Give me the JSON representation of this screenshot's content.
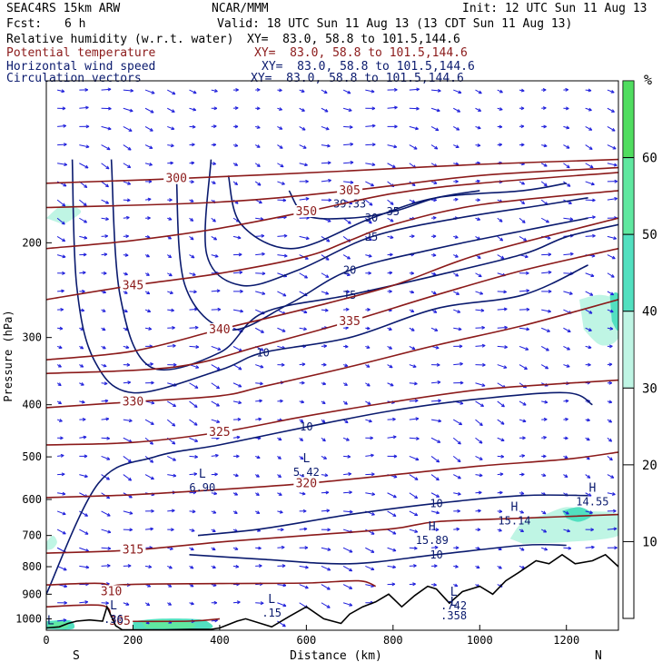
{
  "header": {
    "model": "SEAC4RS 15km ARW",
    "org": "NCAR/MMM",
    "init": "Init: 12 UTC Sun 11 Aug 13",
    "fcst_label": "Fcst:",
    "fcst_value": "6 h",
    "valid": "Valid: 18 UTC Sun 11 Aug 13 (13 CDT Sun 11 Aug 13)"
  },
  "fields": [
    {
      "name": "Relative humidity (w.r.t. water)",
      "xy": "XY=  83.0, 58.8 to 101.5,144.6"
    },
    {
      "name": "Potential temperature",
      "xy": "XY=  83.0, 58.8 to 101.5,144.6"
    },
    {
      "name": "Horizontal wind speed",
      "xy": "XY=  83.0, 58.8 to 101.5,144.6"
    },
    {
      "name": "Circulation vectors",
      "xy": "XY=  83.0, 58.8 to 101.5,144.6"
    }
  ],
  "chart_data": {
    "type": "cross-section contour",
    "xlabel": "Distance (km)",
    "ylabel": "Pressure (hPa)",
    "x_ticks": [
      0,
      200,
      400,
      600,
      800,
      1000,
      1200
    ],
    "y_ticks": [
      200,
      300,
      400,
      500,
      600,
      700,
      800,
      900,
      1000
    ],
    "xlim": [
      0,
      1320
    ],
    "ylim": [
      1050,
      100
    ],
    "y_scale": "log",
    "endpoints": {
      "left": "S",
      "right": "N"
    },
    "colorbar": {
      "unit": "%",
      "ticks": [
        10,
        20,
        30,
        40,
        50,
        60
      ],
      "colors": {
        "30-40": "#bff5e4",
        "40-50": "#52e0c0",
        "50-60": "#60e8a0",
        "60-70": "#50dd60"
      }
    },
    "colors": {
      "theta": "#8b1a1a",
      "wind": "#0a1a6e",
      "vectors": "#1e1edb",
      "terrain": "#000000"
    },
    "theta_contours": [
      {
        "value": 300,
        "label": "300",
        "pts": [
          [
            0,
            155
          ],
          [
            300,
            152
          ],
          [
            700,
            147
          ],
          [
            1000,
            143
          ],
          [
            1320,
            140
          ]
        ]
      },
      {
        "value": 305,
        "label": "305",
        "pts": [
          [
            0,
            172
          ],
          [
            400,
            168
          ],
          [
            700,
            160
          ],
          [
            1000,
            150
          ],
          [
            1320,
            145
          ]
        ]
      },
      {
        "value": 350,
        "label": "350",
        "pts": [
          [
            0,
            205
          ],
          [
            200,
            198
          ],
          [
            400,
            188
          ],
          [
            600,
            175
          ],
          [
            800,
            162
          ],
          [
            1000,
            155
          ],
          [
            1320,
            148
          ]
        ]
      },
      {
        "value": 345,
        "label": "345",
        "pts": [
          [
            0,
            255
          ],
          [
            200,
            240
          ],
          [
            400,
            228
          ],
          [
            600,
            212
          ],
          [
            700,
            198
          ],
          [
            800,
            185
          ],
          [
            1000,
            170
          ],
          [
            1320,
            160
          ]
        ]
      },
      {
        "value": 340,
        "label": "340",
        "pts": [
          [
            0,
            330
          ],
          [
            200,
            318
          ],
          [
            400,
            290
          ],
          [
            600,
            265
          ],
          [
            800,
            240
          ],
          [
            1000,
            210
          ],
          [
            1320,
            180
          ]
        ]
      },
      {
        "value": 335,
        "label": "335",
        "pts": [
          [
            0,
            350
          ],
          [
            300,
            340
          ],
          [
            500,
            310
          ],
          [
            700,
            280
          ],
          [
            900,
            250
          ],
          [
            1100,
            225
          ],
          [
            1320,
            205
          ]
        ]
      },
      {
        "value": 330,
        "label": "330",
        "pts": [
          [
            0,
            405
          ],
          [
            200,
            395
          ],
          [
            400,
            385
          ],
          [
            500,
            370
          ],
          [
            700,
            340
          ],
          [
            900,
            310
          ],
          [
            1100,
            285
          ],
          [
            1320,
            255
          ]
        ]
      },
      {
        "value": 325,
        "label": "325",
        "pts": [
          [
            0,
            475
          ],
          [
            200,
            470
          ],
          [
            400,
            450
          ],
          [
            600,
            420
          ],
          [
            800,
            395
          ],
          [
            1000,
            375
          ],
          [
            1200,
            365
          ],
          [
            1320,
            360
          ]
        ]
      },
      {
        "value": 320,
        "label": "320",
        "pts": [
          [
            0,
            595
          ],
          [
            200,
            588
          ],
          [
            400,
            575
          ],
          [
            600,
            560
          ],
          [
            800,
            540
          ],
          [
            1000,
            520
          ],
          [
            1200,
            505
          ],
          [
            1320,
            490
          ]
        ]
      },
      {
        "value": 315,
        "label": "315",
        "pts": [
          [
            0,
            755
          ],
          [
            200,
            745
          ],
          [
            400,
            720
          ],
          [
            600,
            700
          ],
          [
            800,
            680
          ],
          [
            900,
            660
          ],
          [
            1100,
            650
          ],
          [
            1320,
            640
          ]
        ]
      },
      {
        "value": 310,
        "label": "310",
        "pts": [
          [
            0,
            865
          ],
          [
            130,
            860
          ],
          [
            150,
            890
          ],
          [
            170,
            865
          ],
          [
            400,
            860
          ],
          [
            600,
            858
          ],
          [
            720,
            850
          ],
          [
            760,
            870
          ]
        ]
      },
      {
        "value": 305,
        "label": "305",
        "pts": [
          [
            0,
            950
          ],
          [
            130,
            945
          ],
          [
            150,
            1000
          ],
          [
            170,
            1010
          ],
          [
            330,
            1010
          ],
          [
            400,
            1000
          ]
        ]
      }
    ],
    "wind_contours": [
      {
        "value": 10,
        "label": "10",
        "pts": [
          [
            60,
            140
          ],
          [
            70,
            240
          ],
          [
            110,
            330
          ],
          [
            200,
            380
          ],
          [
            400,
            345
          ],
          [
            500,
            320
          ],
          [
            700,
            300
          ],
          [
            900,
            265
          ],
          [
            1100,
            250
          ],
          [
            1250,
            220
          ]
        ]
      },
      {
        "value": 15,
        "label": "15",
        "pts": [
          [
            150,
            140
          ],
          [
            170,
            250
          ],
          [
            240,
            340
          ],
          [
            400,
            320
          ],
          [
            500,
            270
          ],
          [
            700,
            250
          ],
          [
            900,
            230
          ],
          [
            1100,
            210
          ],
          [
            1200,
            195
          ],
          [
            1320,
            185
          ]
        ]
      },
      {
        "value": 20,
        "label": "20",
        "pts": [
          [
            300,
            150
          ],
          [
            320,
            240
          ],
          [
            420,
            290
          ],
          [
            560,
            260
          ],
          [
            700,
            225
          ],
          [
            900,
            205
          ],
          [
            1100,
            190
          ],
          [
            1250,
            180
          ]
        ]
      },
      {
        "value": 25,
        "label": "25",
        "pts": [
          [
            380,
            140
          ],
          [
            370,
            210
          ],
          [
            450,
            240
          ],
          [
            580,
            225
          ],
          [
            750,
            195
          ],
          [
            950,
            180
          ],
          [
            1150,
            170
          ],
          [
            1250,
            165
          ]
        ]
      },
      {
        "value": 30,
        "label": "30",
        "pts": [
          [
            420,
            150
          ],
          [
            450,
            185
          ],
          [
            570,
            205
          ],
          [
            750,
            180
          ],
          [
            900,
            165
          ],
          [
            1100,
            160
          ],
          [
            1200,
            155
          ]
        ]
      },
      {
        "value": 35,
        "label": "35",
        "pts": [
          [
            560,
            160
          ],
          [
            600,
            178
          ],
          [
            700,
            180
          ],
          [
            800,
            175
          ],
          [
            900,
            165
          ],
          [
            1000,
            160
          ]
        ]
      },
      {
        "value": 10,
        "label": "10",
        "pts": [
          [
            0,
            900
          ],
          [
            120,
            560
          ],
          [
            250,
            500
          ],
          [
            400,
            475
          ],
          [
            600,
            440
          ],
          [
            800,
            410
          ],
          [
            1000,
            390
          ],
          [
            1200,
            380
          ],
          [
            1260,
            400
          ]
        ]
      },
      {
        "value": 10,
        "label": "10",
        "pts": [
          [
            330,
            760
          ],
          [
            500,
            775
          ],
          [
            700,
            790
          ],
          [
            900,
            760
          ],
          [
            1100,
            730
          ],
          [
            1200,
            730
          ]
        ]
      },
      {
        "value": 10,
        "label": "10",
        "pts": [
          [
            350,
            700
          ],
          [
            500,
            680
          ],
          [
            700,
            640
          ],
          [
            900,
            610
          ],
          [
            1100,
            590
          ],
          [
            1250,
            590
          ]
        ]
      }
    ],
    "wind_labels": [
      "10",
      "15",
      "20",
      "25",
      "30",
      "35",
      "39.33",
      "10",
      "10",
      "10",
      "10"
    ],
    "extrema": [
      {
        "type": "L",
        "value": "6.90",
        "x": 360,
        "p": 555
      },
      {
        "type": "L",
        "value": "5.42",
        "x": 600,
        "p": 520
      },
      {
        "type": "H",
        "value": "15.89",
        "x": 890,
        "p": 695
      },
      {
        "type": "H",
        "value": "15.14",
        "x": 1080,
        "p": 640
      },
      {
        "type": "H",
        "value": "14.55",
        "x": 1260,
        "p": 590
      },
      {
        "type": "L",
        "value": ".15",
        "x": 520,
        "p": 950
      },
      {
        "type": "L",
        "value": ".36",
        "x": 155,
        "p": 975
      },
      {
        "type": "L",
        "value": ".54",
        "x": 10,
        "p": 1040
      },
      {
        "type": "L",
        "value": ".742",
        "x": 940,
        "p": 920
      },
      {
        "type": "L",
        "value": ".358",
        "x": 940,
        "p": 960
      }
    ],
    "terrain_pressure": [
      [
        0,
        1040
      ],
      [
        30,
        1035
      ],
      [
        50,
        1020
      ],
      [
        70,
        1010
      ],
      [
        100,
        1005
      ],
      [
        130,
        1010
      ],
      [
        140,
        950
      ],
      [
        160,
        1030
      ],
      [
        175,
        1048
      ],
      [
        270,
        1048
      ],
      [
        330,
        1046
      ],
      [
        380,
        1046
      ],
      [
        400,
        1040
      ],
      [
        440,
        1010
      ],
      [
        460,
        1000
      ],
      [
        520,
        1035
      ],
      [
        560,
        990
      ],
      [
        600,
        950
      ],
      [
        640,
        1000
      ],
      [
        680,
        1020
      ],
      [
        700,
        980
      ],
      [
        730,
        950
      ],
      [
        760,
        930
      ],
      [
        790,
        900
      ],
      [
        820,
        950
      ],
      [
        850,
        905
      ],
      [
        880,
        870
      ],
      [
        900,
        880
      ],
      [
        930,
        935
      ],
      [
        960,
        890
      ],
      [
        1000,
        870
      ],
      [
        1030,
        900
      ],
      [
        1060,
        850
      ],
      [
        1090,
        820
      ],
      [
        1130,
        780
      ],
      [
        1160,
        790
      ],
      [
        1190,
        760
      ],
      [
        1220,
        790
      ],
      [
        1260,
        780
      ],
      [
        1290,
        760
      ],
      [
        1320,
        800
      ]
    ],
    "rh_shaded": [
      {
        "level": "30-40",
        "poly": [
          [
            1070,
            710
          ],
          [
            1100,
            660
          ],
          [
            1150,
            640
          ],
          [
            1200,
            620
          ],
          [
            1250,
            630
          ],
          [
            1320,
            640
          ],
          [
            1320,
            700
          ],
          [
            1200,
            720
          ],
          [
            1100,
            725
          ]
        ]
      },
      {
        "level": "40-50",
        "poly": [
          [
            1190,
            630
          ],
          [
            1230,
            620
          ],
          [
            1260,
            640
          ],
          [
            1230,
            660
          ],
          [
            1200,
            650
          ]
        ]
      },
      {
        "level": "30-40",
        "poly": [
          [
            0,
            720
          ],
          [
            15,
            700
          ],
          [
            25,
            720
          ],
          [
            15,
            740
          ],
          [
            0,
            745
          ]
        ]
      },
      {
        "level": "30-40",
        "poly": [
          [
            0,
            180
          ],
          [
            40,
            170
          ],
          [
            80,
            175
          ],
          [
            40,
            185
          ]
        ]
      },
      {
        "level": "30-40",
        "poly": [
          [
            1230,
            255
          ],
          [
            1280,
            250
          ],
          [
            1320,
            260
          ],
          [
            1320,
            300
          ],
          [
            1280,
            310
          ],
          [
            1240,
            290
          ]
        ]
      },
      {
        "level": "40-50",
        "poly": [
          [
            1300,
            250
          ],
          [
            1320,
            250
          ],
          [
            1320,
            290
          ],
          [
            1305,
            280
          ]
        ]
      },
      {
        "level": "40-50",
        "poly": [
          [
            200,
            1010
          ],
          [
            260,
            1000
          ],
          [
            330,
            1000
          ],
          [
            370,
            1010
          ],
          [
            370,
            1045
          ],
          [
            200,
            1045
          ]
        ]
      },
      {
        "level": "50-60",
        "poly": [
          [
            220,
            1015
          ],
          [
            260,
            1005
          ],
          [
            300,
            1010
          ],
          [
            340,
            1020
          ],
          [
            330,
            1040
          ],
          [
            230,
            1040
          ]
        ]
      },
      {
        "level": "40-50",
        "poly": [
          [
            0,
            1010
          ],
          [
            40,
            1005
          ],
          [
            60,
            1012
          ],
          [
            60,
            1045
          ],
          [
            0,
            1045
          ]
        ]
      },
      {
        "level": "50-60",
        "poly": [
          [
            5,
            1020
          ],
          [
            35,
            1012
          ],
          [
            50,
            1020
          ],
          [
            45,
            1040
          ],
          [
            5,
            1040
          ]
        ]
      }
    ],
    "vectors": {
      "nx": 26,
      "ny": 30,
      "u": 0.9,
      "v": -0.25
    }
  }
}
